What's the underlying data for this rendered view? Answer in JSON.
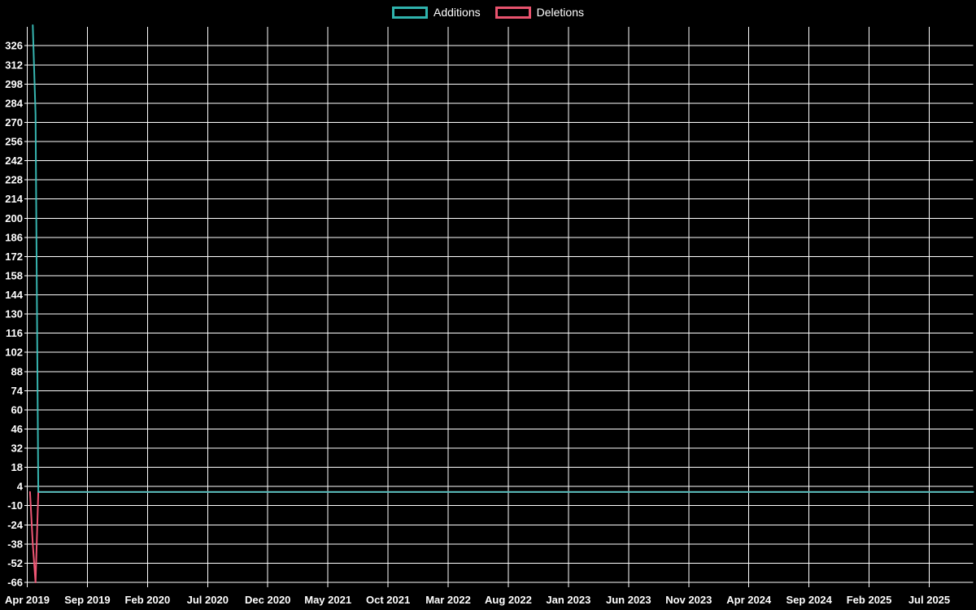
{
  "chart_data": {
    "type": "line",
    "background_color": "#000000",
    "grid_color": "#ffffff",
    "text_color": "#ffffff",
    "legend_position": "top-center",
    "grid": true,
    "y_axis": {
      "min": -66,
      "max": 341,
      "tick_step": 14,
      "ticks": [
        -66,
        -52,
        -38,
        -24,
        -10,
        4,
        18,
        32,
        46,
        60,
        74,
        88,
        102,
        116,
        130,
        144,
        158,
        172,
        186,
        200,
        214,
        228,
        242,
        256,
        270,
        284,
        298,
        312,
        326
      ]
    },
    "x_axis": {
      "tick_labels": [
        "Apr 2019",
        "Sep 2019",
        "Feb 2020",
        "Jul 2020",
        "Dec 2020",
        "May 2021",
        "Oct 2021",
        "Mar 2022",
        "Aug 2022",
        "Jan 2023",
        "Jun 2023",
        "Nov 2023",
        "Apr 2024",
        "Sep 2024",
        "Feb 2025",
        "Jul 2025"
      ],
      "unit": "week",
      "weeks_per_tick": 21.74,
      "total_weeks": 342
    },
    "series": [
      {
        "name": "Deletions",
        "color": "#ee5674",
        "opacity": 1,
        "points_week_value": [
          [
            1,
            0
          ],
          [
            2,
            -38
          ],
          [
            3,
            -66
          ],
          [
            4,
            0
          ],
          [
            342,
            0
          ]
        ]
      },
      {
        "name": "Additions",
        "color": "#3cc8c2",
        "opacity": 0.9,
        "points_week_value": [
          [
            2,
            341
          ],
          [
            3,
            276
          ],
          [
            4,
            0
          ],
          [
            342,
            0
          ]
        ]
      }
    ],
    "legend": [
      {
        "label": "Additions",
        "color": "#2fb3ad"
      },
      {
        "label": "Deletions",
        "color": "#e9536e"
      }
    ]
  }
}
